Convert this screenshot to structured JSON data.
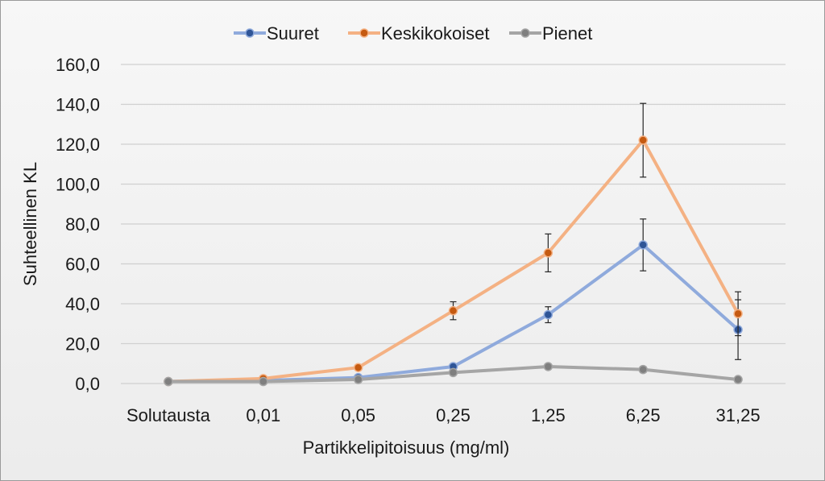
{
  "chart_data": {
    "type": "line",
    "title": "",
    "xlabel": "Partikkelipitoisuus (mg/ml)",
    "ylabel": "Suhteellinen KL",
    "categories": [
      "Solutausta",
      "0,01",
      "0,05",
      "0,25",
      "1,25",
      "6,25",
      "31,25"
    ],
    "ylim": [
      0,
      160
    ],
    "yticks": [
      "0,0",
      "20,0",
      "40,0",
      "60,0",
      "80,0",
      "100,0",
      "120,0",
      "140,0",
      "160,0"
    ],
    "grid": "horizontal",
    "legend_position": "top",
    "series": [
      {
        "name": "Suuret",
        "line_color": "#8faadc",
        "marker_color": "#2f5597",
        "values": [
          1.0,
          1.5,
          3.0,
          8.5,
          34.5,
          69.5,
          27.0
        ],
        "errors": [
          0,
          0,
          0,
          0,
          4.0,
          13.0,
          15.0
        ]
      },
      {
        "name": "Keskikokoiset",
        "line_color": "#f4b183",
        "marker_color": "#c55a11",
        "values": [
          1.0,
          2.5,
          8.0,
          36.5,
          65.5,
          122.0,
          35.0
        ],
        "errors": [
          0,
          0,
          0,
          4.5,
          9.5,
          18.5,
          11.0
        ]
      },
      {
        "name": "Pienet",
        "line_color": "#a5a5a5",
        "marker_color": "#7f7f7f",
        "values": [
          1.0,
          1.0,
          2.0,
          5.5,
          8.5,
          7.0,
          2.0
        ],
        "errors": [
          0,
          0,
          0,
          0,
          0,
          1.5,
          0
        ]
      }
    ]
  }
}
